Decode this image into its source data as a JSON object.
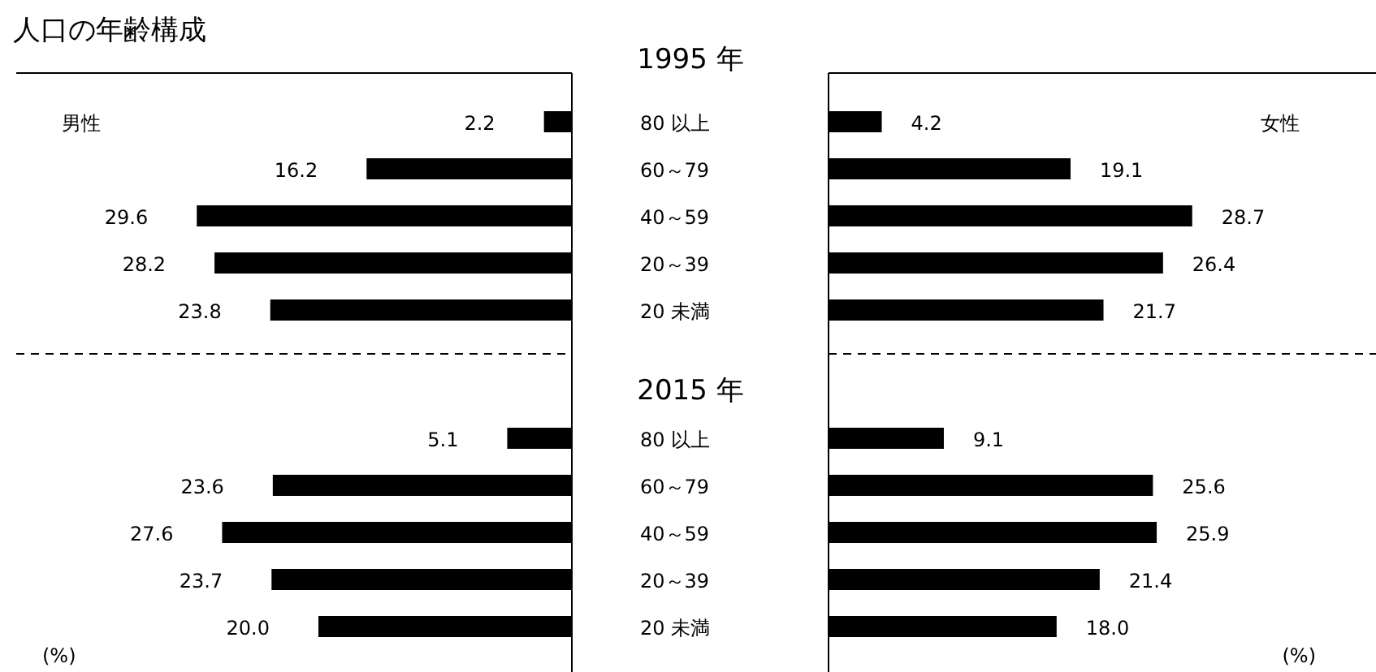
{
  "chart_data": [
    {
      "type": "bar",
      "orientation": "horizontal",
      "title": "人口の年齢構成",
      "categories": [
        "80 以上",
        "60～79",
        "40～59",
        "20～39",
        "20 未満"
      ],
      "series": [
        {
          "name": "男性",
          "color": "#000000",
          "values": [
            2.2,
            16.2,
            29.6,
            28.2,
            23.8
          ],
          "value_labels": [
            "2.2",
            "16.2",
            "29.6",
            "28.2",
            "23.8"
          ]
        }
      ]
    },
    {
      "type": "bar",
      "orientation": "horizontal",
      "subtitle": "1995 年",
      "categories": [
        null,
        null,
        null,
        null,
        null
      ],
      "series": [
        {
          "name": "女性",
          "color": "#000000",
          "values": [
            4.2,
            19.1,
            28.7,
            26.4,
            21.7
          ],
          "value_labels": [
            "4.2",
            "19.1",
            "28.7",
            "26.4",
            "21.7"
          ]
        }
      ]
    },
    {
      "type": "bar",
      "orientation": "horizontal",
      "categories": [
        "80 以上",
        "60～79",
        "40～59",
        "20～39",
        "20 未満"
      ],
      "annotations": [
        "(%)"
      ],
      "series": [
        {
          "color": "#000000",
          "values": [
            5.1,
            23.6,
            27.6,
            23.7,
            20.0
          ],
          "value_labels": [
            "5.1",
            "23.6",
            "27.6",
            "23.7",
            "20.0"
          ]
        }
      ]
    },
    {
      "type": "bar",
      "orientation": "horizontal",
      "subtitle": "2015 年",
      "categories": [
        null,
        null,
        null,
        null,
        null
      ],
      "annotations": [
        "(%)"
      ],
      "series": [
        {
          "color": "#000000",
          "values": [
            9.1,
            25.6,
            25.9,
            21.4,
            18.0
          ],
          "value_labels": [
            "9.1",
            "25.6",
            "25.9",
            "21.4",
            "18.0"
          ]
        }
      ]
    }
  ]
}
